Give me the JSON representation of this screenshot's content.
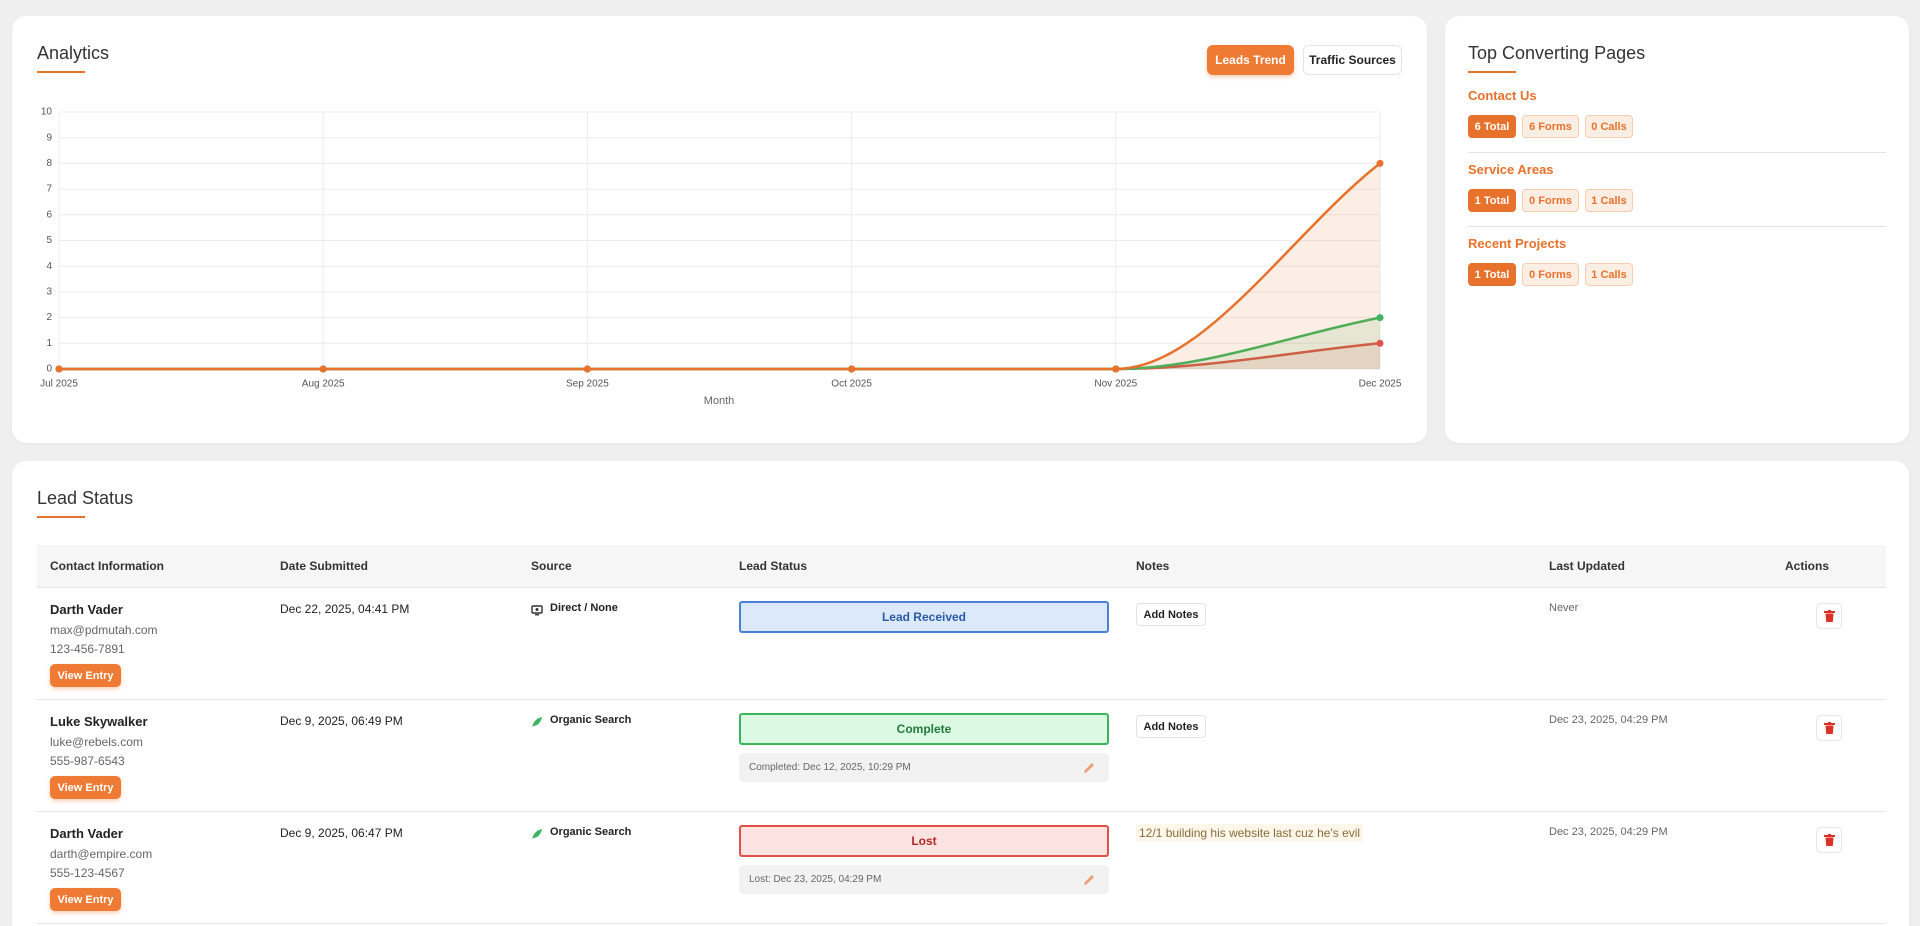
{
  "chart_data": {
    "type": "line",
    "title": "Analytics",
    "x_label": "Month",
    "categories": [
      "Jul 2025",
      "Aug 2025",
      "Sep 2025",
      "Oct 2025",
      "Nov 2025",
      "Dec 2025"
    ],
    "series": [
      {
        "color": "#e8712b",
        "values": [
          0,
          0,
          0,
          0,
          0,
          8
        ]
      },
      {
        "color": "#3cb55e",
        "values": [
          0,
          0,
          0,
          0,
          0,
          2
        ]
      },
      {
        "color": "#e0514a",
        "values": [
          0,
          0,
          0,
          0,
          0,
          1
        ]
      }
    ],
    "ylim": [
      0,
      10
    ],
    "yticks": [
      0,
      1,
      2,
      3,
      4,
      5,
      6,
      7,
      8,
      9,
      10
    ],
    "grid": true
  },
  "tabs": [
    "Leads Trend",
    "Traffic Sources"
  ],
  "top_pages": {
    "title": "Top Converting Pages",
    "items": [
      {
        "name": "Contact Us",
        "total": "6 Total",
        "forms": "6 Forms",
        "calls": "0 Calls"
      },
      {
        "name": "Service Areas",
        "total": "1 Total",
        "forms": "0 Forms",
        "calls": "1 Calls"
      },
      {
        "name": "Recent Projects",
        "total": "1 Total",
        "forms": "0 Forms",
        "calls": "1 Calls"
      }
    ]
  },
  "lead_status": {
    "title": "Lead Status",
    "columns": [
      "Contact Information",
      "Date Submitted",
      "Source",
      "Lead Status",
      "Notes",
      "Last Updated",
      "Actions"
    ],
    "rows": [
      {
        "name": "Darth Vader",
        "email": "max@pdmutah.com",
        "phone": "123-456-7891",
        "button": "View Entry",
        "date": "Dec 22, 2025, 04:41 PM",
        "source": "Direct / None",
        "status": "Lead Received",
        "add_notes": "Add Notes",
        "last_updated": "Never"
      },
      {
        "name": "Luke Skywalker",
        "email": "luke@rebels.com",
        "phone": "555-987-6543",
        "button": "View Entry",
        "date": "Dec 9, 2025, 06:49 PM",
        "source": "Organic Search",
        "status": "Complete",
        "status_note": "Completed: Dec 12, 2025, 10:29 PM",
        "add_notes": "Add Notes",
        "last_updated": "Dec 23, 2025, 04:29 PM"
      },
      {
        "name": "Darth Vader",
        "email": "darth@empire.com",
        "phone": "555-123-4567",
        "button": "View Entry",
        "date": "Dec 9, 2025, 06:47 PM",
        "source": "Organic Search",
        "status": "Lost",
        "status_note": "Lost: Dec 23, 2025, 04:29 PM",
        "notes": "12/1 building his website last cuz he's evil",
        "last_updated": "Dec 23, 2025, 04:29 PM"
      }
    ]
  }
}
